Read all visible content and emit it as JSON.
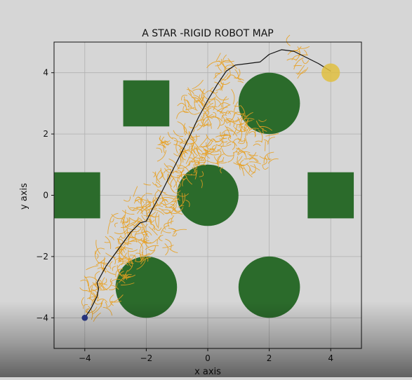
{
  "chart_data": {
    "type": "scatter",
    "title": "A STAR -RIGID ROBOT MAP",
    "xlabel": "x axis",
    "ylabel": "y axis",
    "xlim": [
      -5,
      5
    ],
    "ylim": [
      -5,
      5
    ],
    "xticks": [
      -4,
      -2,
      0,
      2,
      4
    ],
    "yticks": [
      -4,
      -2,
      0,
      2,
      4
    ],
    "grid": true,
    "colors": {
      "obstacle": "#2b6b2b",
      "explored": "#e8a020",
      "path": "#111111",
      "start": "#2b3a8c",
      "goal": "#e0c040",
      "background": "#d6d6d6",
      "axes_bg": "#d6d6d6"
    },
    "obstacles": [
      {
        "shape": "circle",
        "cx": 2,
        "cy": 3,
        "r": 1
      },
      {
        "shape": "circle",
        "cx": 0,
        "cy": 0,
        "r": 1
      },
      {
        "shape": "circle",
        "cx": -2,
        "cy": -3,
        "r": 1
      },
      {
        "shape": "circle",
        "cx": 2,
        "cy": -3,
        "r": 1
      },
      {
        "shape": "square",
        "cx": -2,
        "cy": 3,
        "half": 0.75
      },
      {
        "shape": "square",
        "cx": -4.25,
        "cy": 0,
        "half": 0.75
      },
      {
        "shape": "square",
        "cx": 4,
        "cy": 0,
        "half": 0.75
      }
    ],
    "start": {
      "x": -4,
      "y": -4,
      "r": 0.1
    },
    "goal": {
      "x": 4,
      "y": 4,
      "r": 0.3
    },
    "path": [
      [
        -4,
        -4
      ],
      [
        -3.8,
        -3.7
      ],
      [
        -3.6,
        -3.3
      ],
      [
        -3.55,
        -3.05
      ],
      [
        -3.6,
        -2.85
      ],
      [
        -3.3,
        -2.3
      ],
      [
        -2.9,
        -1.75
      ],
      [
        -2.5,
        -1.2
      ],
      [
        -2.2,
        -0.9
      ],
      [
        -2.0,
        -0.85
      ],
      [
        -1.8,
        -0.45
      ],
      [
        -1.5,
        0.1
      ],
      [
        -1.2,
        0.7
      ],
      [
        -0.9,
        1.3
      ],
      [
        -0.6,
        1.9
      ],
      [
        -0.3,
        2.55
      ],
      [
        0.0,
        3.1
      ],
      [
        0.3,
        3.6
      ],
      [
        0.6,
        4.05
      ],
      [
        0.9,
        4.25
      ],
      [
        1.3,
        4.3
      ],
      [
        1.7,
        4.35
      ],
      [
        2.0,
        4.6
      ],
      [
        2.4,
        4.75
      ],
      [
        2.8,
        4.7
      ],
      [
        3.2,
        4.5
      ],
      [
        3.6,
        4.3
      ],
      [
        4.0,
        4.05
      ]
    ],
    "explored_clusters": [
      {
        "cx": -3.6,
        "cy": -3.3,
        "spread": 0.55,
        "count": 40
      },
      {
        "cx": -3.1,
        "cy": -2.4,
        "spread": 0.6,
        "count": 45
      },
      {
        "cx": -2.5,
        "cy": -1.5,
        "spread": 0.7,
        "count": 60
      },
      {
        "cx": -1.9,
        "cy": -0.9,
        "spread": 0.9,
        "count": 75
      },
      {
        "cx": -1.4,
        "cy": 0.2,
        "spread": 0.7,
        "count": 55
      },
      {
        "cx": -0.9,
        "cy": 1.2,
        "spread": 0.7,
        "count": 60
      },
      {
        "cx": 0.2,
        "cy": 2.0,
        "spread": 1.0,
        "count": 110
      },
      {
        "cx": 1.2,
        "cy": 1.7,
        "spread": 0.8,
        "count": 60
      },
      {
        "cx": -0.2,
        "cy": 3.0,
        "spread": 0.5,
        "count": 40
      },
      {
        "cx": 0.6,
        "cy": 4.0,
        "spread": 0.4,
        "count": 25
      },
      {
        "cx": 3.0,
        "cy": 4.5,
        "spread": 0.4,
        "count": 15
      }
    ]
  }
}
